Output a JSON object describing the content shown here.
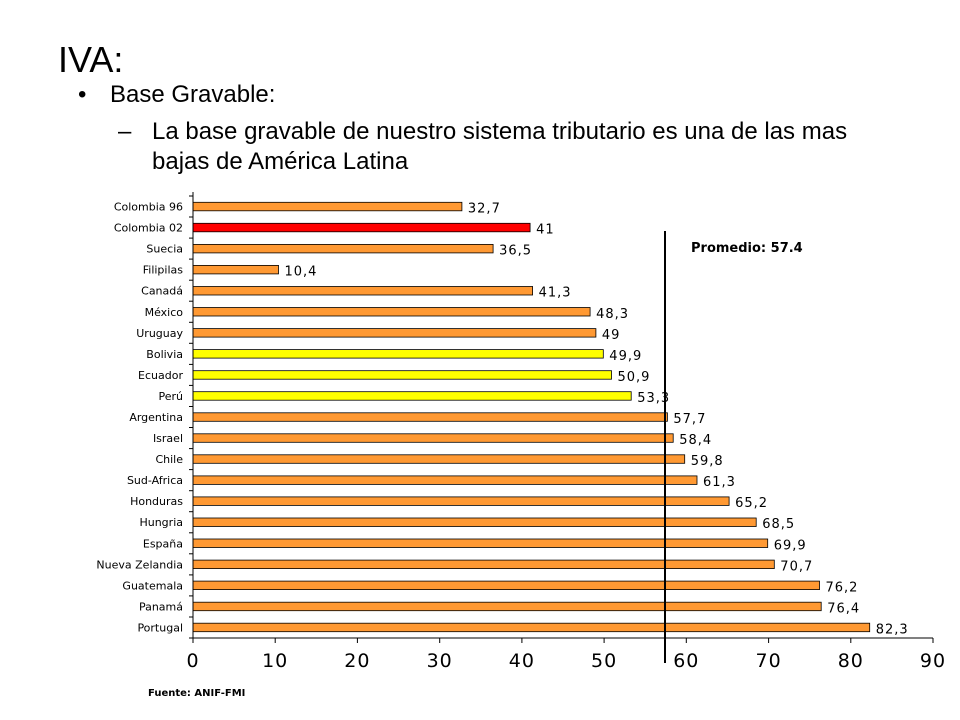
{
  "slide": {
    "title": "IVA:",
    "bullet_marker": "•",
    "bullet_text": "Base Gravable:",
    "sub_marker": "–",
    "sub_text": "La base gravable de nuestro sistema tributario es una de las mas bajas de América Latina"
  },
  "chart_data": {
    "type": "bar",
    "orientation": "horizontal",
    "categories": [
      "Colombia 96",
      "Colombia 02",
      "Suecia",
      "Filipilas",
      "Canadá",
      "México",
      "Uruguay",
      "Bolivia",
      "Ecuador",
      "Perú",
      "Argentina",
      "Israel",
      "Chile",
      "Sud-Africa",
      "Honduras",
      "Hungria",
      "España",
      "Nueva Zelandia",
      "Guatemala",
      "Panamá",
      "Portugal"
    ],
    "values": [
      32.7,
      41,
      36.5,
      10.4,
      41.3,
      48.3,
      49,
      49.9,
      50.9,
      53.3,
      57.7,
      58.4,
      59.8,
      61.3,
      65.2,
      68.5,
      69.9,
      70.7,
      76.2,
      76.4,
      82.3
    ],
    "value_labels": [
      "32,7",
      "41",
      "36,5",
      "10,4",
      "41,3",
      "48,3",
      "49",
      "49,9",
      "50,9",
      "53,3",
      "57,7",
      "58,4",
      "59,8",
      "61,3",
      "65,2",
      "68,5",
      "69,9",
      "70,7",
      "76,2",
      "76,4",
      "82,3"
    ],
    "bar_colors": [
      "#FF9933",
      "#FF0000",
      "#FF9933",
      "#FF9933",
      "#FF9933",
      "#FF9933",
      "#FF9933",
      "#FFFF00",
      "#FFFF00",
      "#FFFF00",
      "#FF9933",
      "#FF9933",
      "#FF9933",
      "#FF9933",
      "#FF9933",
      "#FF9933",
      "#FF9933",
      "#FF9933",
      "#FF9933",
      "#FF9933",
      "#FF9933"
    ],
    "xlim": [
      0,
      90
    ],
    "xticks": [
      0,
      10,
      20,
      30,
      40,
      50,
      60,
      70,
      80,
      90
    ],
    "reference_line": {
      "value": 57.4,
      "label": "Promedio: 57.4"
    },
    "source": "Fuente: ANIF-FMI",
    "grid": false
  }
}
